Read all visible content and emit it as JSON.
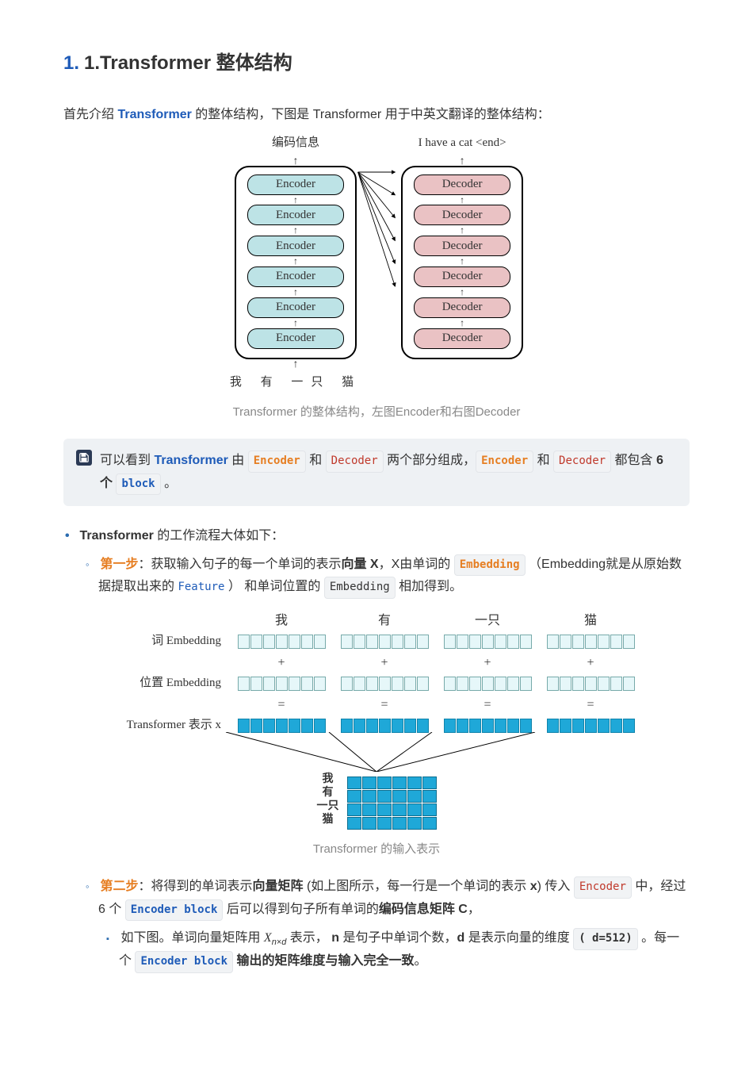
{
  "heading": {
    "number": "1.",
    "title": "1.Transformer 整体结构"
  },
  "intro": {
    "pre": "首先介绍 ",
    "link": "Transformer",
    "post": " 的整体结构，下图是 Transformer 用于中英文翻译的整体结构："
  },
  "diagram1": {
    "left_top": "编码信息",
    "right_top": "I  have  a  cat  <end>",
    "encoder_label": "Encoder",
    "decoder_label": "Decoder",
    "bottom_words": "我 有 一只 猫",
    "colors": {
      "encoder_bg": "#bde3e6",
      "decoder_bg": "#eac2c4",
      "border": "#000000"
    },
    "count": 6
  },
  "caption1": "Transformer 的整体结构，左图Encoder和右图Decoder",
  "note": {
    "t1": "可以看到 ",
    "transformer": "Transformer",
    "t2": " 由 ",
    "encoder": "Encoder",
    "t3": " 和 ",
    "decoder": "Decoder",
    "t4": " 两个部分组成，",
    "encoder2": "Encoder",
    "t5": " 和 ",
    "decoder2": "Decoder",
    "t6": " 都包含 ",
    "six": "6 个",
    "block": "block",
    "t7": " 。"
  },
  "workflow_intro": {
    "bold": "Transformer",
    "rest": " 的工作流程大体如下："
  },
  "step1": {
    "label": "第一步",
    "t1": "：获取输入句子的每一个单词的表示",
    "bold1": "向量 X",
    "t2": "，X由单词的 ",
    "embedding": "Embedding",
    "t3": " （Embedding就是从原始数据提取出来的 ",
    "feature": "Feature",
    "t4": " ） 和单词位置的 ",
    "embedding2": "Embedding",
    "t5": " 相加得到。"
  },
  "diagram2": {
    "words": [
      "我",
      "有",
      "一只",
      "猫"
    ],
    "row_labels": [
      "词 Embedding",
      "位置 Embedding",
      "Transformer 表示 x"
    ],
    "cells_per_group": 7,
    "colors": {
      "light_bg": "#e6f7f9",
      "light_border": "#7fbfc9",
      "fill_bg": "#1fa8d8",
      "fill_border": "#0d6f90"
    },
    "matrix_labels": [
      "我",
      "有",
      "一只",
      "猫"
    ],
    "matrix_rows": 4,
    "matrix_cols": 6
  },
  "caption2": "Transformer 的输入表示",
  "step2": {
    "label": "第二步",
    "t1": "：将得到的单词表示",
    "bold1": "向量矩阵",
    "t2": " (如上图所示，每一行是一个单词的表示 ",
    "bold2": "x",
    "t3": ") 传入 ",
    "encoder": "Encoder",
    "t4": " 中，经过 6 个 ",
    "encblock": "Encoder block",
    "t5": " 后可以得到句子所有单词的",
    "bold3": "编码信息矩阵 C",
    "t6": "，"
  },
  "step2b": {
    "t1": "如下图。单词向量矩阵用 ",
    "math": "X",
    "mathsub": "n×d",
    "t2": " 表示， ",
    "bold1": "n",
    "t3": " 是句子中单词个数，",
    "bold2": "d",
    "t4": " 是表示向量的维度 ",
    "dim": "( d=512)",
    "t5": " 。每一个 ",
    "encblock": "Encoder block",
    "t6": " ",
    "bold3": "输出的矩阵维度与输入完全一致",
    "t7": "。"
  }
}
